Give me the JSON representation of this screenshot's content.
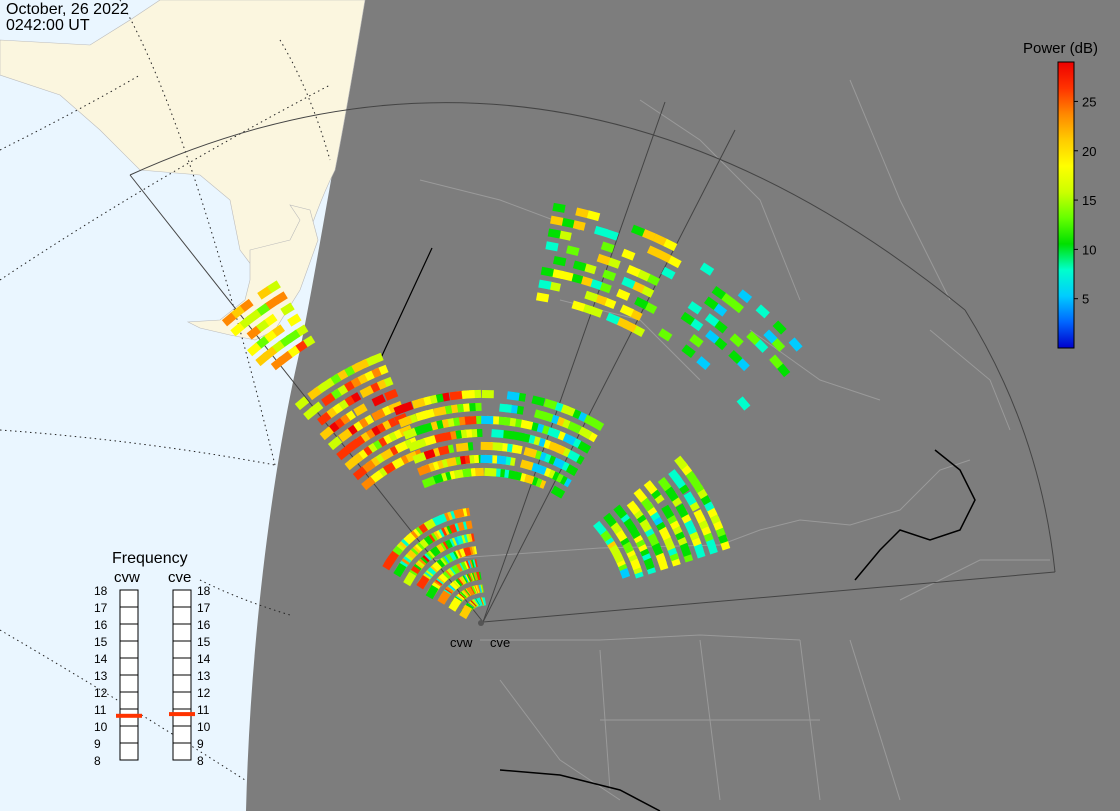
{
  "header": {
    "date": "October, 26 2022",
    "time": "0242:00 UT"
  },
  "colorbar": {
    "title": "Power (dB)",
    "min": 0,
    "max": 29,
    "ticks": [
      "5",
      "10",
      "15",
      "20",
      "25"
    ],
    "tick_values": [
      5,
      10,
      15,
      20,
      25
    ],
    "colors": [
      "#0000cc",
      "#0066ff",
      "#00ccff",
      "#00ffcc",
      "#00e000",
      "#66ff00",
      "#ccff00",
      "#ffff00",
      "#ffcc00",
      "#ff8800",
      "#ff3300",
      "#ee0000"
    ]
  },
  "frequency_panel": {
    "title": "Frequency",
    "radars": [
      {
        "name": "cvw",
        "freq_mhz": 10.6
      },
      {
        "name": "cve",
        "freq_mhz": 10.7
      }
    ],
    "scale": [
      "18",
      "17",
      "16",
      "15",
      "14",
      "13",
      "12",
      "11",
      "10",
      "9",
      "8"
    ],
    "indicator_color": "#ff3300"
  },
  "map_labels": {
    "cvw": "cvw",
    "cve": "cve"
  },
  "colors": {
    "night": "#7d7d7d",
    "day_ocean": "#eaf6ff",
    "day_land": "#fbf6df",
    "border": "#a0a0a0"
  }
}
